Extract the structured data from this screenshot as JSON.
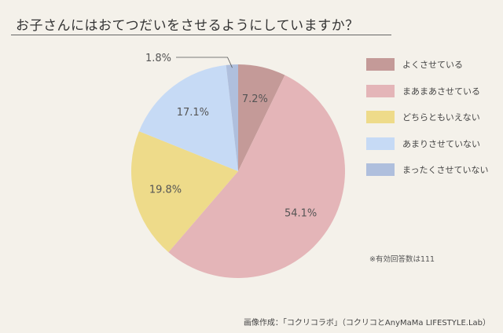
{
  "title": "お子さんにはおてつだいをさせるようにしていますか？",
  "note": "※有効回答数は111",
  "credit": "画像作成：「コクリコラボ」（コクリコとAnyMaMa LIFESTYLE.Lab）",
  "chart_data": {
    "type": "pie",
    "title": "お子さんにはおてつだいをさせるようにしていますか？",
    "start": "12 o'clock",
    "direction": "clockwise",
    "legend_position": "right",
    "slices": [
      {
        "label": "よくさせている",
        "value": 7.2,
        "display": "7.2%",
        "color": "#c49a98"
      },
      {
        "label": "まあまあさせている",
        "value": 54.1,
        "display": "54.1%",
        "color": "#e4b5b8"
      },
      {
        "label": "どちらともいえない",
        "value": 19.8,
        "display": "19.8%",
        "color": "#eedb8a"
      },
      {
        "label": "あまりさせていない",
        "value": 17.1,
        "display": "17.1%",
        "color": "#c6daf5"
      },
      {
        "label": "まったくさせていない",
        "value": 1.8,
        "display": "1.8%",
        "color": "#afbfdd"
      }
    ]
  }
}
